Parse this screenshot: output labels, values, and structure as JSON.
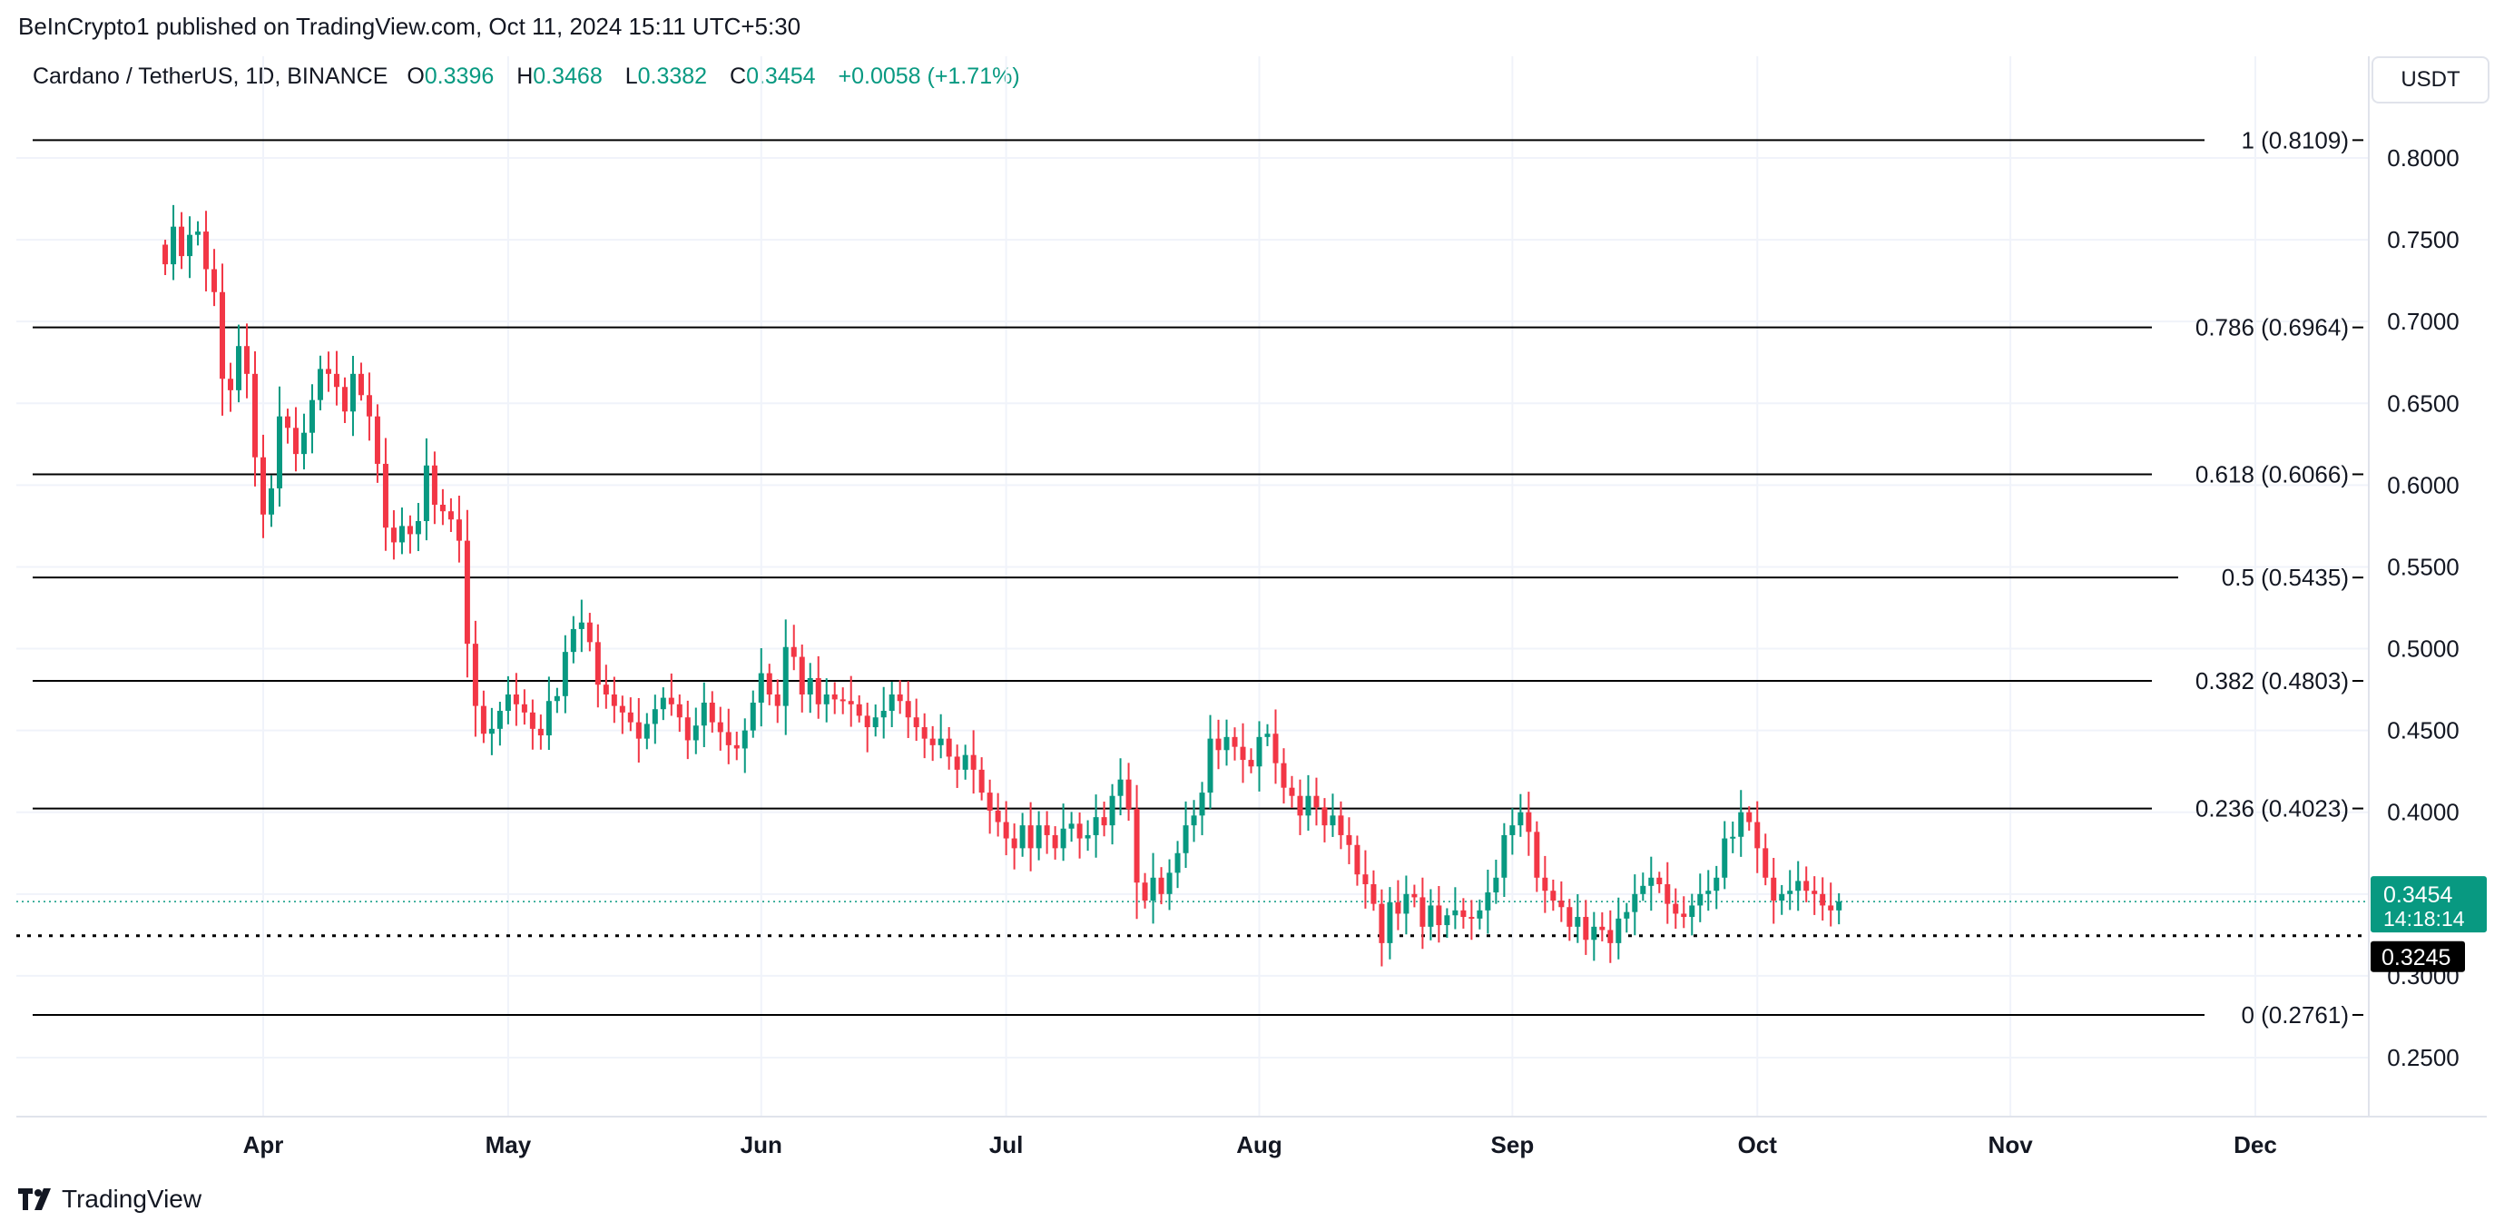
{
  "header": {
    "published": "BeInCrypto1 published on TradingView.com, Oct 11, 2024 15:11 UTC+5:30",
    "symbol": "Cardano / TetherUS, 1D, BINANCE",
    "open_label": "O",
    "open": "0.3396",
    "high_label": "H",
    "high": "0.3468",
    "low_label": "L",
    "low": "0.3382",
    "close_label": "C",
    "close": "0.3454",
    "change": "+0.0058 (+1.71%)"
  },
  "currency_button": "USDT",
  "footer": {
    "logo_text": "TradingView"
  },
  "colors": {
    "up": "#089981",
    "down": "#f23645",
    "grid": "#f0f3fa",
    "fib": "#000000"
  },
  "chart_data": {
    "type": "candlestick",
    "ylim": [
      0.2,
      0.83
    ],
    "y_ticks": [
      "0.2500",
      "0.3000",
      "0.3500",
      "0.4000",
      "0.4500",
      "0.5000",
      "0.5500",
      "0.6000",
      "0.6500",
      "0.7000",
      "0.7500",
      "0.8000"
    ],
    "x_ticks": [
      "Apr",
      "May",
      "Jun",
      "Jul",
      "Aug",
      "Sep",
      "Oct",
      "Nov",
      "Dec"
    ],
    "x_tick_dates": [
      "2024-04-01",
      "2024-05-01",
      "2024-06-01",
      "2024-07-01",
      "2024-08-01",
      "2024-09-01",
      "2024-10-01",
      "2024-11-01",
      "2024-12-01"
    ],
    "x_start_date": "2024-03-01",
    "fib_levels": [
      {
        "label": "1 (0.8109)",
        "value": 0.8109
      },
      {
        "label": "0.786 (0.6964)",
        "value": 0.6964
      },
      {
        "label": "0.618 (0.6066)",
        "value": 0.6066
      },
      {
        "label": "0.5 (0.5435)",
        "value": 0.5435
      },
      {
        "label": "0.382 (0.4803)",
        "value": 0.4803
      },
      {
        "label": "0.236 (0.4023)",
        "value": 0.4023
      },
      {
        "label": "0 (0.2761)",
        "value": 0.2761
      }
    ],
    "last_price": {
      "value": 0.3454,
      "label": "0.3454",
      "countdown": "14:18:14"
    },
    "support_line": {
      "value": 0.3245,
      "label": "0.3245"
    },
    "closes": [
      0.735,
      0.758,
      0.74,
      0.753,
      0.755,
      0.732,
      0.718,
      0.665,
      0.658,
      0.685,
      0.668,
      0.617,
      0.582,
      0.598,
      0.642,
      0.635,
      0.619,
      0.632,
      0.652,
      0.671,
      0.668,
      0.66,
      0.645,
      0.668,
      0.655,
      0.642,
      0.613,
      0.574,
      0.565,
      0.575,
      0.57,
      0.578,
      0.612,
      0.588,
      0.584,
      0.579,
      0.566,
      0.503,
      0.465,
      0.448,
      0.451,
      0.462,
      0.472,
      0.466,
      0.461,
      0.451,
      0.447,
      0.468,
      0.471,
      0.498,
      0.512,
      0.516,
      0.504,
      0.478,
      0.472,
      0.465,
      0.461,
      0.455,
      0.445,
      0.454,
      0.463,
      0.47,
      0.466,
      0.458,
      0.444,
      0.453,
      0.467,
      0.455,
      0.449,
      0.441,
      0.439,
      0.45,
      0.467,
      0.485,
      0.472,
      0.465,
      0.501,
      0.495,
      0.472,
      0.482,
      0.466,
      0.472,
      0.469,
      0.468,
      0.466,
      0.459,
      0.452,
      0.458,
      0.462,
      0.472,
      0.468,
      0.458,
      0.452,
      0.445,
      0.441,
      0.445,
      0.434,
      0.426,
      0.435,
      0.426,
      0.412,
      0.401,
      0.394,
      0.384,
      0.378,
      0.392,
      0.378,
      0.392,
      0.386,
      0.378,
      0.39,
      0.393,
      0.384,
      0.386,
      0.397,
      0.392,
      0.41,
      0.42,
      0.402,
      0.357,
      0.346,
      0.36,
      0.35,
      0.363,
      0.375,
      0.392,
      0.398,
      0.412,
      0.445,
      0.438,
      0.446,
      0.44,
      0.432,
      0.428,
      0.446,
      0.448,
      0.43,
      0.415,
      0.41,
      0.398,
      0.41,
      0.403,
      0.392,
      0.398,
      0.386,
      0.38,
      0.362,
      0.356,
      0.344,
      0.32,
      0.345,
      0.338,
      0.35,
      0.348,
      0.33,
      0.343,
      0.331,
      0.337,
      0.34,
      0.336,
      0.335,
      0.34,
      0.351,
      0.36,
      0.386,
      0.392,
      0.4,
      0.388,
      0.36,
      0.352,
      0.346,
      0.342,
      0.33,
      0.336,
      0.322,
      0.33,
      0.328,
      0.32,
      0.335,
      0.339,
      0.35,
      0.355,
      0.36,
      0.356,
      0.344,
      0.338,
      0.336,
      0.343,
      0.35,
      0.352,
      0.36,
      0.384,
      0.385,
      0.4,
      0.394,
      0.378,
      0.36,
      0.346,
      0.35,
      0.352,
      0.358,
      0.352,
      0.35,
      0.343,
      0.34,
      0.3454
    ]
  }
}
